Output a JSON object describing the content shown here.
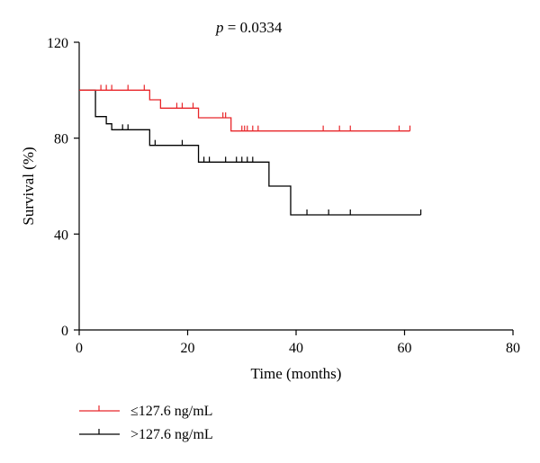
{
  "chart_data": {
    "type": "line",
    "subtype": "kaplan-meier",
    "annotation": {
      "italic": "p",
      "text": " = 0.0334"
    },
    "xlabel": "Time (months)",
    "ylabel": "Survival (%)",
    "xlim": [
      0,
      80
    ],
    "ylim": [
      0,
      120
    ],
    "xticks": [
      0,
      20,
      40,
      60,
      80
    ],
    "yticks": [
      0,
      40,
      80,
      120
    ],
    "grid": false,
    "legend_position": "bottom-left",
    "series": [
      {
        "name": "≤127.6 ng/mL",
        "color": "#e8262a",
        "steps": [
          [
            0,
            100
          ],
          [
            13,
            96
          ],
          [
            15,
            92.5
          ],
          [
            22,
            88.5
          ],
          [
            28,
            83
          ],
          [
            61,
            83
          ]
        ],
        "censored": [
          [
            4,
            100
          ],
          [
            5,
            100
          ],
          [
            6,
            100
          ],
          [
            9,
            100
          ],
          [
            12,
            100
          ],
          [
            18,
            92.5
          ],
          [
            19,
            92.5
          ],
          [
            21,
            92.5
          ],
          [
            26.5,
            88.5
          ],
          [
            27,
            88.5
          ],
          [
            30,
            83
          ],
          [
            30.5,
            83
          ],
          [
            31,
            83
          ],
          [
            32,
            83
          ],
          [
            33,
            83
          ],
          [
            45,
            83
          ],
          [
            48,
            83
          ],
          [
            50,
            83
          ],
          [
            59,
            83
          ],
          [
            61,
            83
          ]
        ]
      },
      {
        "name": ">127.6 ng/mL",
        "color": "#000000",
        "steps": [
          [
            0,
            100
          ],
          [
            3,
            89
          ],
          [
            5,
            86
          ],
          [
            6,
            83.5
          ],
          [
            13,
            77
          ],
          [
            22,
            70
          ],
          [
            35,
            60
          ],
          [
            39,
            48
          ],
          [
            63,
            48
          ]
        ],
        "censored": [
          [
            8,
            83.5
          ],
          [
            9,
            83.5
          ],
          [
            14,
            77
          ],
          [
            19,
            77
          ],
          [
            23,
            70
          ],
          [
            24,
            70
          ],
          [
            27,
            70
          ],
          [
            29,
            70
          ],
          [
            30,
            70
          ],
          [
            31,
            70
          ],
          [
            32,
            70
          ],
          [
            42,
            48
          ],
          [
            46,
            48
          ],
          [
            50,
            48
          ],
          [
            63,
            48
          ]
        ]
      }
    ]
  }
}
